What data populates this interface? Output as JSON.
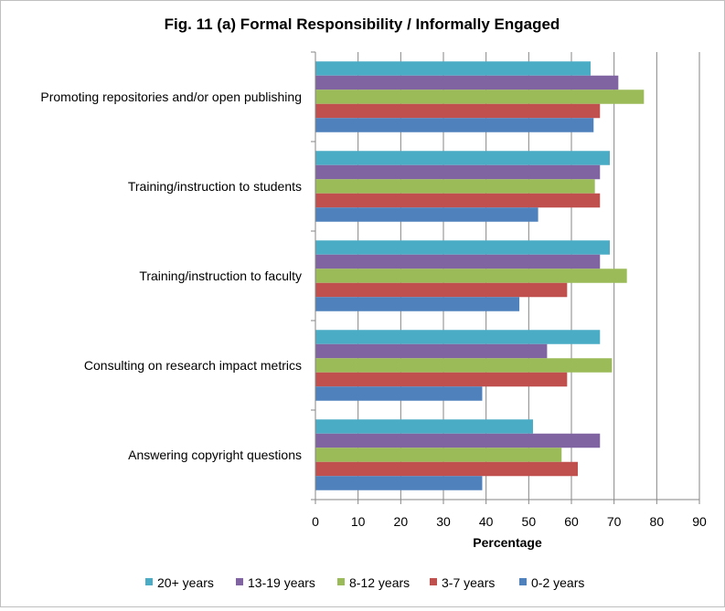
{
  "chart_data": {
    "type": "bar",
    "orientation": "horizontal",
    "title": "Fig. 11 (a) Formal Responsibility / Informally Engaged",
    "xlabel": "Percentage",
    "ylabel": "",
    "xlim": [
      0,
      90
    ],
    "xticks": [
      0,
      10,
      20,
      30,
      40,
      50,
      60,
      70,
      80,
      90
    ],
    "grid": "vertical",
    "legend_position": "bottom",
    "categories": [
      "Promoting repositories and/or open publishing",
      "Training/instruction to students",
      "Training/instruction to faculty",
      "Consulting on research impact metrics",
      "Answering copyright questions"
    ],
    "series": [
      {
        "name": "20+ years",
        "color": "#4bacc6",
        "values": [
          64.5,
          69,
          69,
          66.7,
          51
        ]
      },
      {
        "name": "13-19 years",
        "color": "#8064a2",
        "values": [
          71,
          66.7,
          66.7,
          54.3,
          66.7
        ]
      },
      {
        "name": "8-12 years",
        "color": "#9bbb59",
        "values": [
          77,
          65.5,
          73,
          69.5,
          57.7
        ]
      },
      {
        "name": "3-7 years",
        "color": "#c0504d",
        "values": [
          66.7,
          66.7,
          59,
          59,
          61.5
        ]
      },
      {
        "name": "0-2 years",
        "color": "#4f81bd",
        "values": [
          65.2,
          52.2,
          47.8,
          39.1,
          39.1
        ]
      }
    ]
  }
}
